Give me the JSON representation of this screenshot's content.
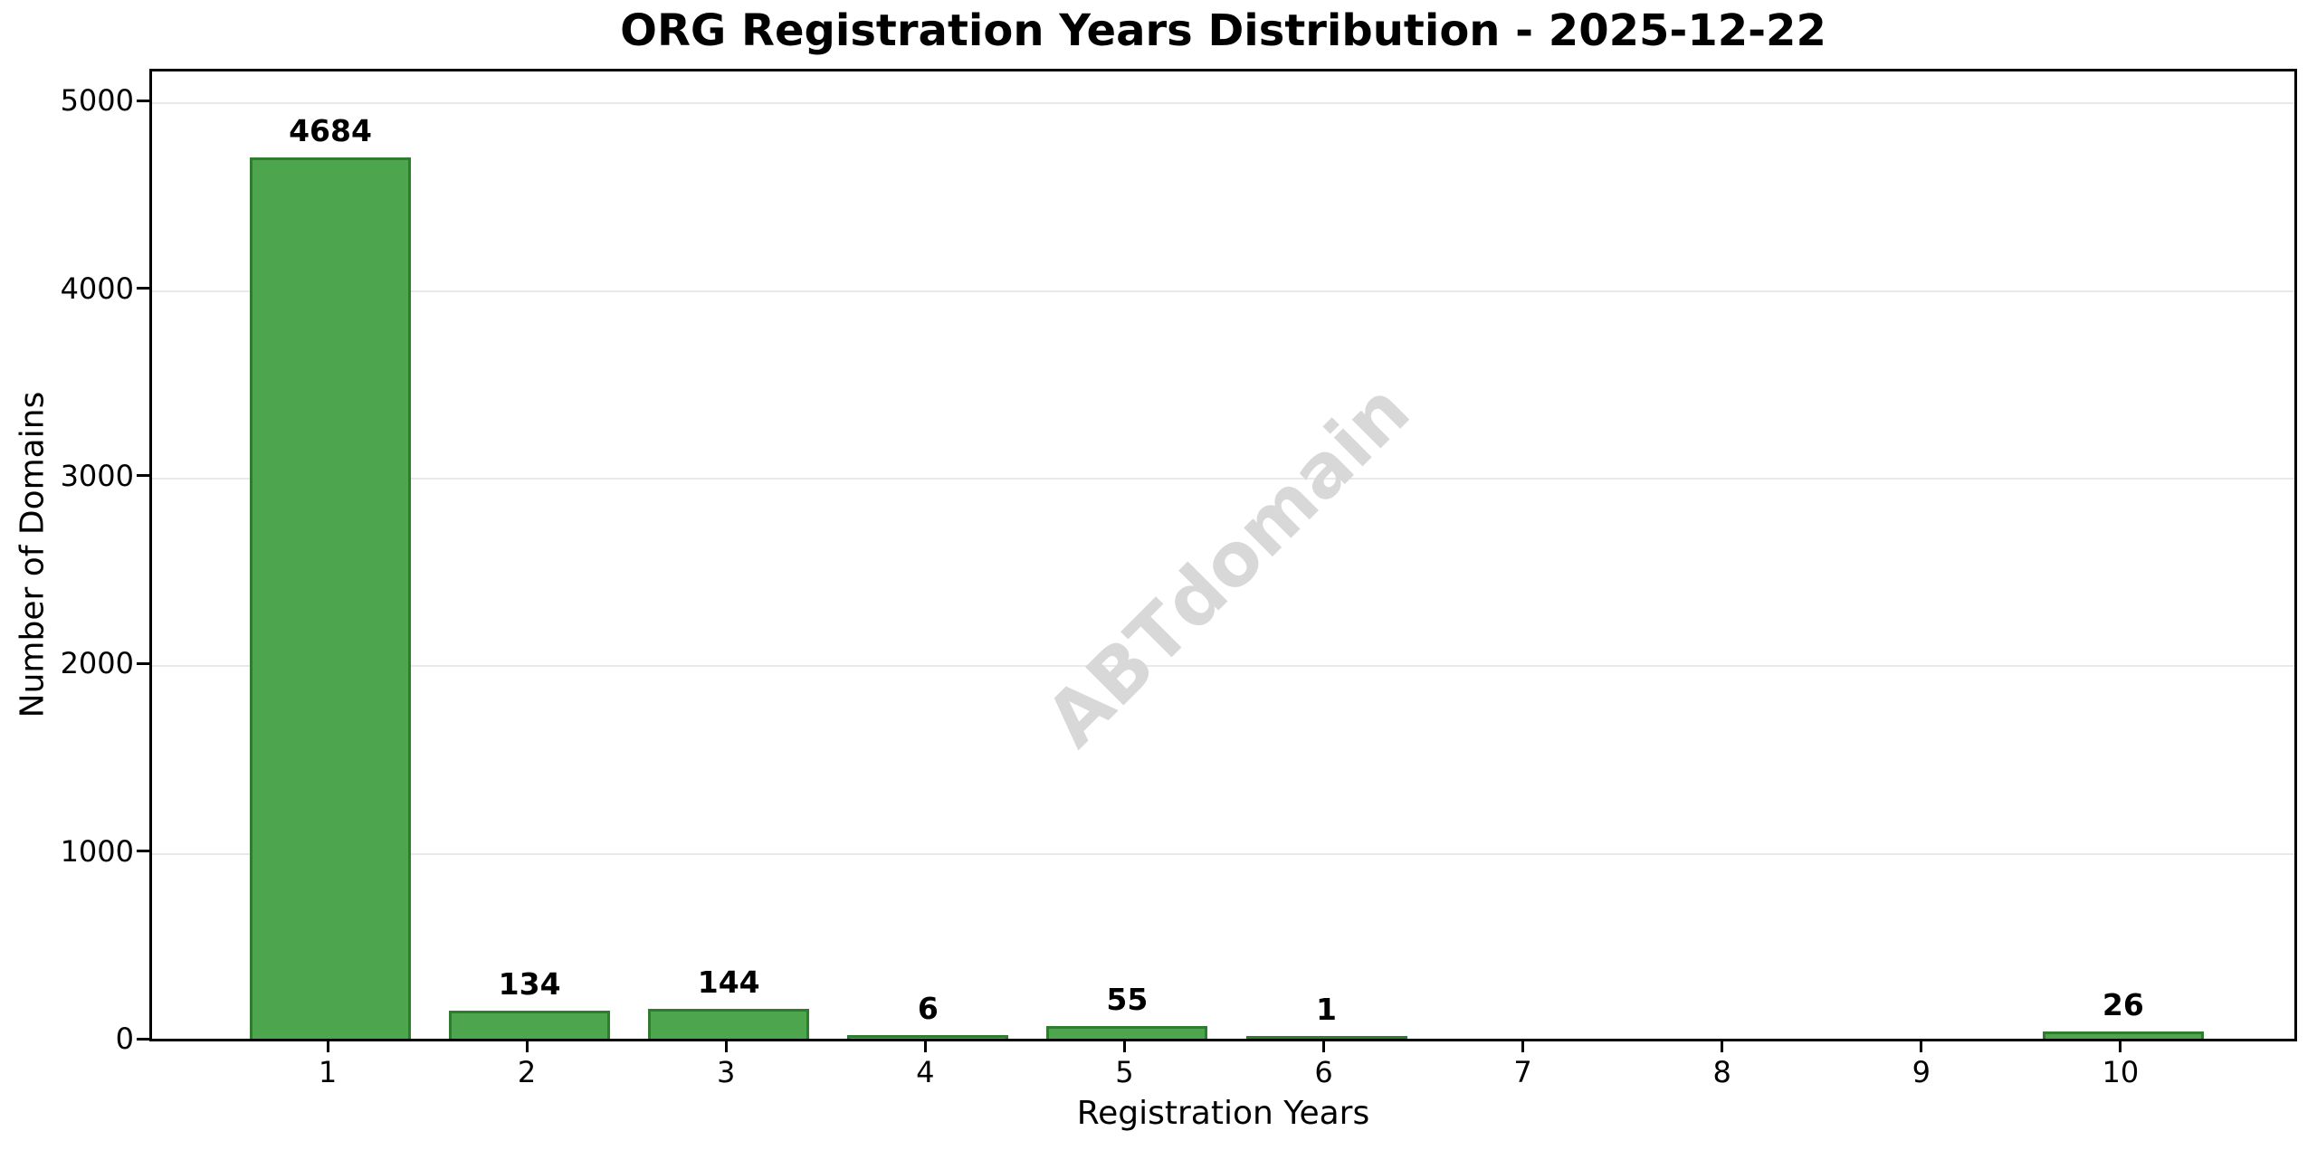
{
  "watermark": "ABTdomain",
  "chart_data": {
    "type": "bar",
    "title": "ORG Registration Years Distribution - 2025-12-22",
    "xlabel": "Registration Years",
    "ylabel": "Number of Domains",
    "categories": [
      "1",
      "2",
      "3",
      "4",
      "5",
      "6",
      "7",
      "8",
      "9",
      "10"
    ],
    "values": [
      4684,
      134,
      144,
      6,
      55,
      1,
      0,
      0,
      0,
      26
    ],
    "bar_labels": [
      "4684",
      "134",
      "144",
      "6",
      "55",
      "1",
      "",
      "",
      "",
      "26"
    ],
    "y_ticks": [
      0,
      1000,
      2000,
      3000,
      4000,
      5000
    ],
    "ylim": [
      0,
      5155
    ],
    "grid": "horizontal-only",
    "legend": "none",
    "colors": {
      "bar_fill": "#4da64d",
      "bar_edge": "#2e7d2e",
      "grid_line": "#e9e9e9",
      "axis": "#000000",
      "text": "#000000",
      "watermark": "#d8d8d8",
      "background": "#ffffff"
    }
  }
}
